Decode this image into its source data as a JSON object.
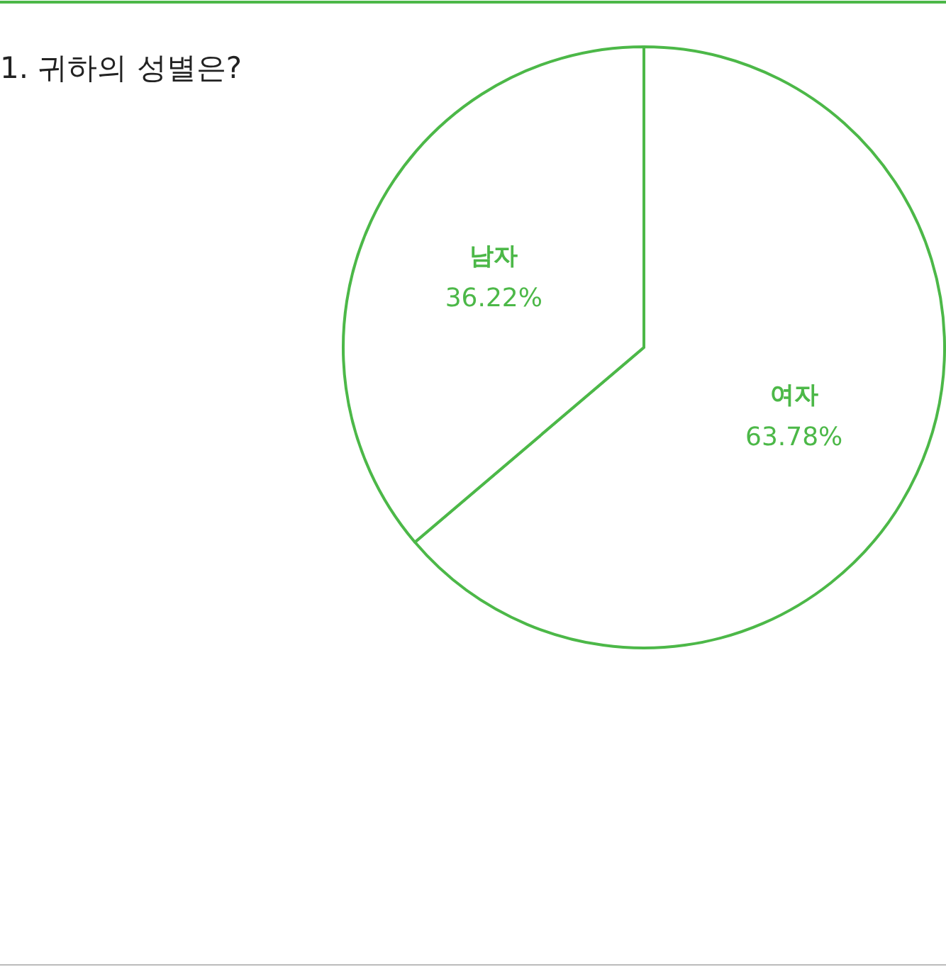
{
  "chart_data": {
    "type": "pie",
    "title": "1. 귀하의 성별은?",
    "categories": [
      "여자",
      "남자"
    ],
    "values": [
      63.78,
      36.22
    ],
    "colors": [
      "#4cb848",
      "#4cb848"
    ],
    "value_labels": [
      "63.78%",
      "36.22%"
    ]
  }
}
